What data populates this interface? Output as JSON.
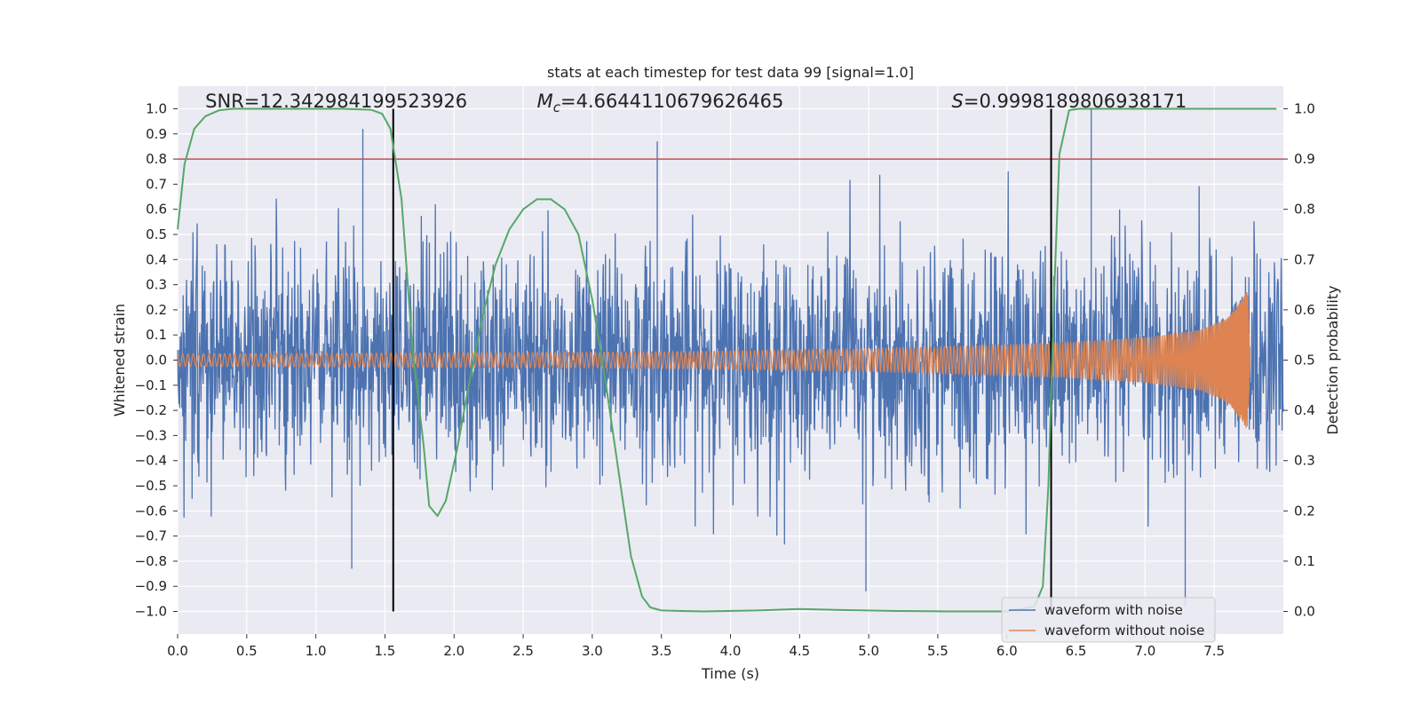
{
  "chart_data": {
    "type": "line",
    "title": "stats at each timestep for test data 99 [signal=1.0]",
    "xlabel": "Time (s)",
    "ylabel": "Whitened strain",
    "y2label": "Detection probability",
    "xlim": [
      0.0,
      8.0
    ],
    "ylim": [
      -1.09,
      1.09
    ],
    "y2lim": [
      -0.045,
      1.045
    ],
    "xticks": [
      "0.0",
      "0.5",
      "1.0",
      "1.5",
      "2.0",
      "2.5",
      "3.0",
      "3.5",
      "4.0",
      "4.5",
      "5.0",
      "5.5",
      "6.0",
      "6.5",
      "7.0",
      "7.5"
    ],
    "yticks": [
      "-1.0",
      "-0.9",
      "-0.8",
      "-0.7",
      "-0.6",
      "-0.5",
      "-0.4",
      "-0.3",
      "-0.2",
      "-0.1",
      "0.0",
      "0.1",
      "0.2",
      "0.3",
      "0.4",
      "0.5",
      "0.6",
      "0.7",
      "0.8",
      "0.9",
      "1.0"
    ],
    "y2ticks": [
      "0.0",
      "0.1",
      "0.2",
      "0.3",
      "0.4",
      "0.5",
      "0.6",
      "0.7",
      "0.8",
      "0.9",
      "1.0"
    ],
    "grid": true,
    "legend_position": "lower-right",
    "colors": {
      "noise": "#4c72b0",
      "clean": "#dd8452",
      "prob": "#55a868",
      "threshold": "#c44e52",
      "vline": "#000000",
      "background": "#eaeaf2"
    },
    "annotations": {
      "snr": {
        "label": "SNR=12.342984199523926",
        "x": 0.2,
        "y": 1.03
      },
      "mc": {
        "label": "=4.6644110679626465",
        "symbol": "M",
        "subscript": "c",
        "x": 2.6,
        "y": 1.03
      },
      "s": {
        "label": "=0.9998189806938171",
        "symbol": "S",
        "x": 5.6,
        "y": 1.03
      }
    },
    "threshold_y": 0.8,
    "vlines": [
      {
        "x": 1.56,
        "y_from": -1.0,
        "y_to": 1.0
      },
      {
        "x": 6.32,
        "y_from": -1.0,
        "y_to": 1.0
      }
    ],
    "series": [
      {
        "name": "waveform with noise",
        "kind": "noise_band",
        "x_range": [
          0.0,
          8.0
        ],
        "typical_amplitude": 0.4,
        "extreme_peaks": [
          {
            "x": 1.34,
            "y": 0.92
          },
          {
            "x": 3.47,
            "y": 0.87
          },
          {
            "x": 6.61,
            "y": 1.0
          },
          {
            "x": 1.26,
            "y": -0.83
          },
          {
            "x": 4.98,
            "y": -0.92
          },
          {
            "x": 7.29,
            "y": -0.98
          }
        ]
      },
      {
        "name": "waveform without noise",
        "kind": "chirp",
        "x_range": [
          0.0,
          7.76
        ],
        "amplitude_envelope": [
          [
            0.0,
            0.025
          ],
          [
            1.0,
            0.027
          ],
          [
            2.0,
            0.029
          ],
          [
            3.0,
            0.031
          ],
          [
            4.0,
            0.036
          ],
          [
            5.0,
            0.045
          ],
          [
            6.0,
            0.06
          ],
          [
            6.5,
            0.072
          ],
          [
            7.0,
            0.09
          ],
          [
            7.4,
            0.12
          ],
          [
            7.6,
            0.17
          ],
          [
            7.7,
            0.24
          ],
          [
            7.74,
            0.28
          ],
          [
            7.76,
            0.0
          ]
        ]
      },
      {
        "name": "Detection probability",
        "kind": "line",
        "axis": "right",
        "points": [
          [
            0.0,
            0.76
          ],
          [
            0.05,
            0.89
          ],
          [
            0.12,
            0.96
          ],
          [
            0.2,
            0.985
          ],
          [
            0.3,
            0.997
          ],
          [
            0.4,
            1.0
          ],
          [
            0.8,
            1.0
          ],
          [
            1.2,
            1.0
          ],
          [
            1.4,
            0.998
          ],
          [
            1.48,
            0.99
          ],
          [
            1.54,
            0.96
          ],
          [
            1.62,
            0.82
          ],
          [
            1.7,
            0.52
          ],
          [
            1.78,
            0.33
          ],
          [
            1.82,
            0.21
          ],
          [
            1.88,
            0.19
          ],
          [
            1.94,
            0.22
          ],
          [
            2.02,
            0.32
          ],
          [
            2.1,
            0.44
          ],
          [
            2.2,
            0.58
          ],
          [
            2.3,
            0.69
          ],
          [
            2.4,
            0.76
          ],
          [
            2.5,
            0.8
          ],
          [
            2.6,
            0.82
          ],
          [
            2.7,
            0.82
          ],
          [
            2.8,
            0.8
          ],
          [
            2.9,
            0.75
          ],
          [
            3.0,
            0.62
          ],
          [
            3.1,
            0.45
          ],
          [
            3.2,
            0.26
          ],
          [
            3.28,
            0.11
          ],
          [
            3.36,
            0.03
          ],
          [
            3.42,
            0.008
          ],
          [
            3.5,
            0.002
          ],
          [
            3.8,
            0.0
          ],
          [
            4.2,
            0.002
          ],
          [
            4.5,
            0.005
          ],
          [
            4.8,
            0.003
          ],
          [
            5.2,
            0.001
          ],
          [
            5.6,
            0.0
          ],
          [
            6.0,
            0.0
          ],
          [
            6.2,
            0.01
          ],
          [
            6.26,
            0.05
          ],
          [
            6.3,
            0.25
          ],
          [
            6.34,
            0.62
          ],
          [
            6.38,
            0.91
          ],
          [
            6.45,
            0.997
          ],
          [
            6.52,
            1.0
          ],
          [
            7.0,
            1.0
          ],
          [
            7.5,
            1.0
          ],
          [
            7.95,
            1.0
          ]
        ]
      }
    ]
  }
}
